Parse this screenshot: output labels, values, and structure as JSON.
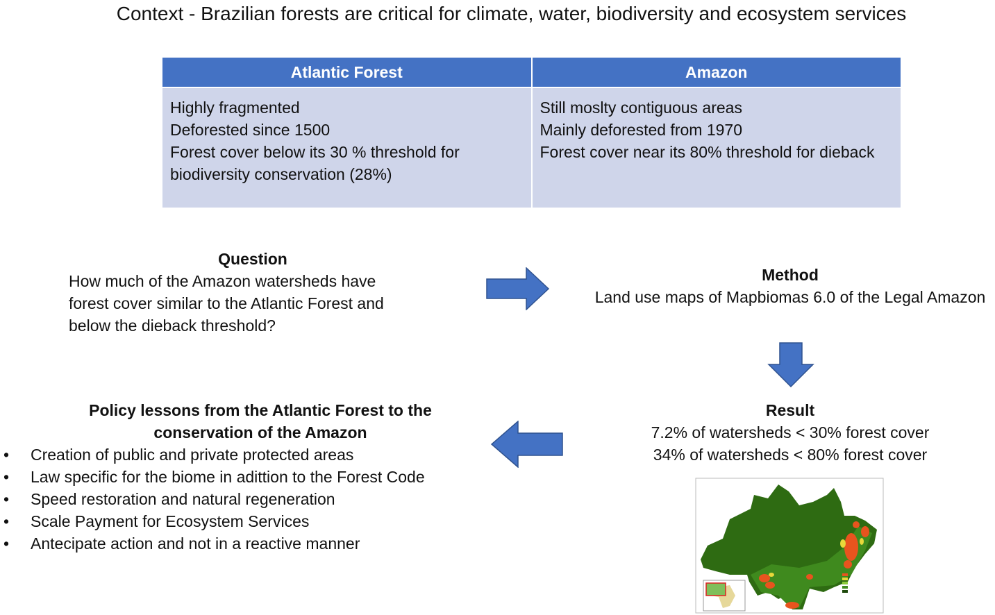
{
  "context": {
    "lead": "Context",
    "text": " - Brazilian forests are critical for climate, water, biodiversity and ecosystem services"
  },
  "table": {
    "headers": [
      "Atlantic Forest",
      "Amazon"
    ],
    "atlantic": [
      "Highly fragmented",
      "Deforested since 1500",
      "Forest cover below its 30 % threshold for biodiversity conservation (28%)"
    ],
    "amazon": [
      "Still moslty contiguous areas",
      "Mainly deforested from 1970",
      "Forest cover near its 80% threshold for dieback"
    ]
  },
  "question": {
    "title": "Question",
    "text": "How much of the Amazon watersheds have forest cover similar to the Atlantic Forest and below the dieback threshold?"
  },
  "method": {
    "title": "Method",
    "text": "Land use maps of Mapbiomas 6.0 of the Legal Amazon"
  },
  "result": {
    "title": "Result",
    "lines": [
      "7.2% of watersheds < 30% forest cover",
      "34% of watersheds < 80% forest cover"
    ]
  },
  "policy": {
    "title": "Policy lessons from the Atlantic Forest to the conservation of the Amazon",
    "items": [
      "Creation of public and private protected areas",
      "Law specific for the biome in adittion to the Forest Code",
      "Speed restoration and natural regeneration",
      "Scale Payment for Ecosystem Services",
      "Antecipate action and not in a reactive manner"
    ]
  },
  "colors": {
    "header": "#4472C4",
    "cell": "#CFD5EA",
    "arrow": "#4472C4"
  }
}
